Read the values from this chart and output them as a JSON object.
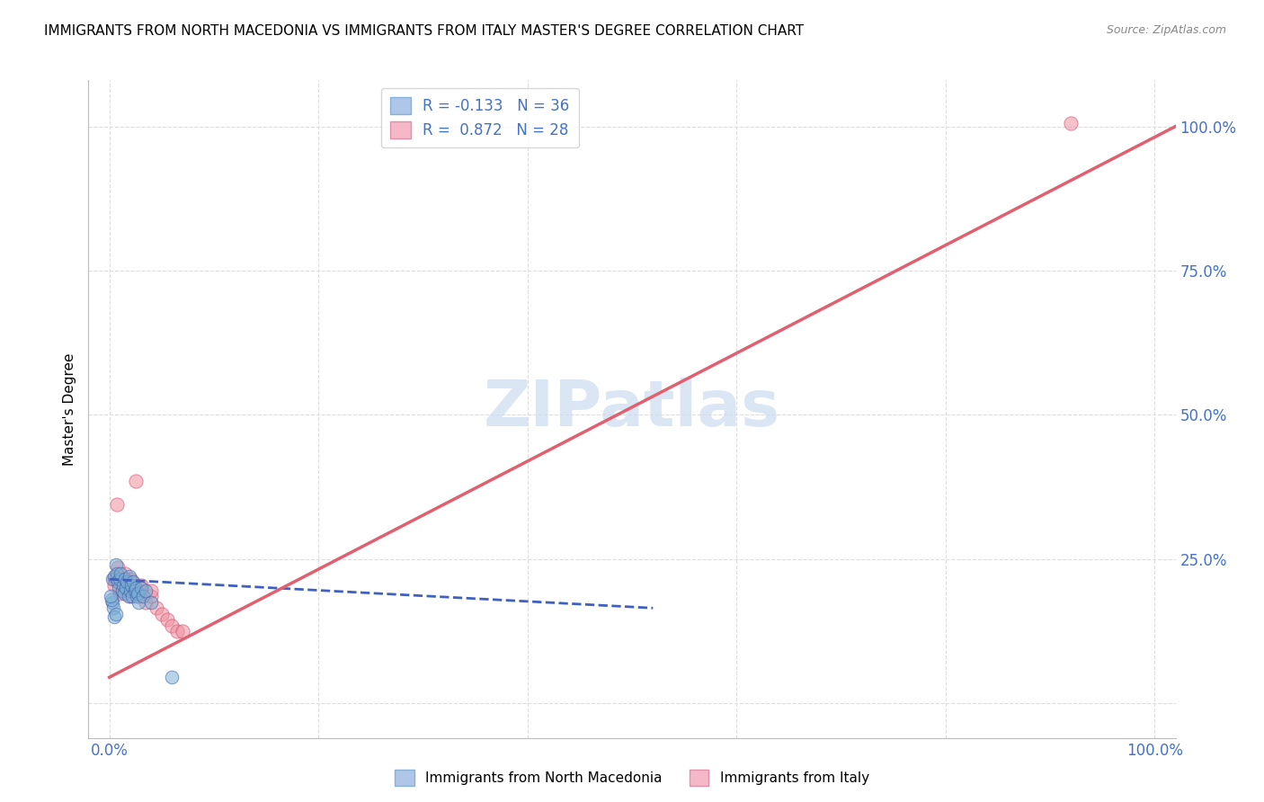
{
  "title": "IMMIGRANTS FROM NORTH MACEDONIA VS IMMIGRANTS FROM ITALY MASTER'S DEGREE CORRELATION CHART",
  "source": "Source: ZipAtlas.com",
  "ylabel": "Master's Degree",
  "ytick_positions": [
    0.0,
    0.25,
    0.5,
    0.75,
    1.0
  ],
  "ytick_labels": [
    "",
    "25.0%",
    "50.0%",
    "75.0%",
    "100.0%"
  ],
  "xtick_positions": [
    0.0,
    1.0
  ],
  "xtick_labels": [
    "0.0%",
    "100.0%"
  ],
  "xlim": [
    -0.02,
    1.02
  ],
  "ylim": [
    -0.06,
    1.08
  ],
  "legend_entries": [
    {
      "label": "R = -0.133   N = 36",
      "facecolor": "#aec6e8",
      "edgecolor": "#8ab0d8"
    },
    {
      "label": "R =  0.872   N = 28",
      "facecolor": "#f4b8c8",
      "edgecolor": "#e090a8"
    }
  ],
  "bottom_legend": [
    {
      "label": "Immigrants from North Macedonia",
      "facecolor": "#aec6e8",
      "edgecolor": "#8ab0d8"
    },
    {
      "label": "Immigrants from Italy",
      "facecolor": "#f4b8c8",
      "edgecolor": "#e090a8"
    }
  ],
  "watermark_text": "ZIPatlas",
  "watermark_color": "#ccdcf0",
  "watermark_fontsize": 52,
  "blue_scatter_color": "#7bafd4",
  "blue_edge_color": "#4060b0",
  "pink_scatter_color": "#f090a0",
  "pink_edge_color": "#d05070",
  "blue_line_color": "#4060c0",
  "blue_line_style": "--",
  "pink_line_color": "#e06070",
  "pink_line_style": "-",
  "blue_line_x": [
    0.0,
    0.52
  ],
  "blue_line_y": [
    0.215,
    0.165
  ],
  "pink_line_x": [
    0.0,
    1.02
  ],
  "pink_line_y": [
    0.045,
    1.0
  ],
  "blue_scatter": [
    [
      0.003,
      0.215
    ],
    [
      0.005,
      0.22
    ],
    [
      0.006,
      0.24
    ],
    [
      0.007,
      0.225
    ],
    [
      0.008,
      0.21
    ],
    [
      0.009,
      0.2
    ],
    [
      0.01,
      0.215
    ],
    [
      0.011,
      0.225
    ],
    [
      0.012,
      0.195
    ],
    [
      0.013,
      0.205
    ],
    [
      0.014,
      0.19
    ],
    [
      0.015,
      0.215
    ],
    [
      0.016,
      0.2
    ],
    [
      0.017,
      0.21
    ],
    [
      0.018,
      0.185
    ],
    [
      0.019,
      0.22
    ],
    [
      0.02,
      0.195
    ],
    [
      0.021,
      0.205
    ],
    [
      0.022,
      0.185
    ],
    [
      0.023,
      0.21
    ],
    [
      0.024,
      0.195
    ],
    [
      0.025,
      0.2
    ],
    [
      0.026,
      0.185
    ],
    [
      0.027,
      0.19
    ],
    [
      0.028,
      0.175
    ],
    [
      0.03,
      0.2
    ],
    [
      0.032,
      0.185
    ],
    [
      0.035,
      0.195
    ],
    [
      0.003,
      0.175
    ],
    [
      0.004,
      0.165
    ],
    [
      0.005,
      0.15
    ],
    [
      0.006,
      0.155
    ],
    [
      0.002,
      0.18
    ],
    [
      0.001,
      0.185
    ],
    [
      0.06,
      0.045
    ],
    [
      0.04,
      0.175
    ]
  ],
  "pink_scatter": [
    [
      0.005,
      0.215
    ],
    [
      0.008,
      0.21
    ],
    [
      0.01,
      0.19
    ],
    [
      0.012,
      0.195
    ],
    [
      0.015,
      0.215
    ],
    [
      0.018,
      0.205
    ],
    [
      0.02,
      0.185
    ],
    [
      0.022,
      0.21
    ],
    [
      0.025,
      0.195
    ],
    [
      0.028,
      0.185
    ],
    [
      0.03,
      0.2
    ],
    [
      0.035,
      0.175
    ],
    [
      0.04,
      0.185
    ],
    [
      0.045,
      0.165
    ],
    [
      0.05,
      0.155
    ],
    [
      0.055,
      0.145
    ],
    [
      0.06,
      0.135
    ],
    [
      0.065,
      0.125
    ],
    [
      0.07,
      0.125
    ],
    [
      0.007,
      0.345
    ],
    [
      0.025,
      0.385
    ],
    [
      0.008,
      0.235
    ],
    [
      0.015,
      0.225
    ],
    [
      0.02,
      0.215
    ],
    [
      0.03,
      0.205
    ],
    [
      0.04,
      0.195
    ],
    [
      0.005,
      0.205
    ],
    [
      0.92,
      1.005
    ]
  ],
  "grid_color": "#dddddd",
  "bg_color": "#ffffff",
  "axis_color": "#bbbbbb",
  "title_fontsize": 11,
  "tick_label_color": "#4472c4",
  "source_color": "#888888"
}
